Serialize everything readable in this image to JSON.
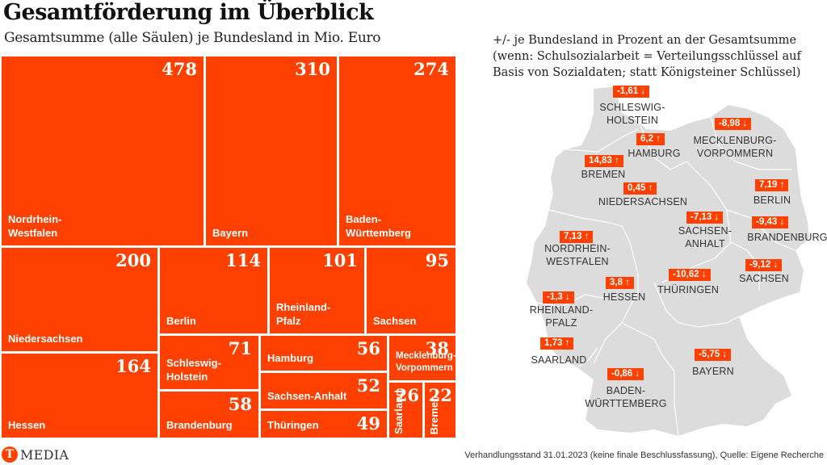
{
  "header": {
    "title": "Gesamtförderung im Überblick",
    "subtitle": "Gesamtsumme (alle Säulen) je Bundesland in Mio. Euro"
  },
  "colors": {
    "accent": "#ff4000",
    "map_fill": "#dcdcdc",
    "map_border": "#ffffff"
  },
  "chart_data": [
    {
      "type": "treemap",
      "title": "Gesamtsumme (alle Säulen) je Bundesland in Mio. Euro",
      "unit": "Mio. Euro",
      "items": [
        {
          "label": "Nordrhein-\nWestfalen",
          "name": "Nordrhein-Westfalen",
          "value": 478
        },
        {
          "label": "Bayern",
          "name": "Bayern",
          "value": 310
        },
        {
          "label": "Baden-\nWürttemberg",
          "name": "Baden-Württemberg",
          "value": 274
        },
        {
          "label": "Niedersachsen",
          "name": "Niedersachsen",
          "value": 200
        },
        {
          "label": "Hessen",
          "name": "Hessen",
          "value": 164
        },
        {
          "label": "Berlin",
          "name": "Berlin",
          "value": 114
        },
        {
          "label": "Rheinland-\nPfalz",
          "name": "Rheinland-Pfalz",
          "value": 101
        },
        {
          "label": "Sachsen",
          "name": "Sachsen",
          "value": 95
        },
        {
          "label": "Schleswig-\nHolstein",
          "name": "Schleswig-Holstein",
          "value": 71
        },
        {
          "label": "Brandenburg",
          "name": "Brandenburg",
          "value": 58
        },
        {
          "label": "Hamburg",
          "name": "Hamburg",
          "value": 56
        },
        {
          "label": "Sachsen-Anhalt",
          "name": "Sachsen-Anhalt",
          "value": 52
        },
        {
          "label": "Thüringen",
          "name": "Thüringen",
          "value": 49
        },
        {
          "label": "Mecklenburg-\nVorpommern",
          "name": "Mecklenburg-Vorpommern",
          "value": 38
        },
        {
          "label": "Saarland",
          "name": "Saarland",
          "value": 26
        },
        {
          "label": "Bremen",
          "name": "Bremen",
          "value": 22
        }
      ]
    },
    {
      "type": "map",
      "title": "+/- je Bundesland in Prozent an der Gesamtsumme\n(wenn: Schulsozialarbeit = Verteilungsschlüssel auf\nBasis von Sozialdaten; statt Königsteiner Schlüssel)",
      "unit": "%",
      "items": [
        {
          "name": "SCHLESWIG-\nHOLSTEIN",
          "value": "-1,61",
          "direction": "down"
        },
        {
          "name": "HAMBURG",
          "value": "6,2",
          "direction": "up"
        },
        {
          "name": "MECKLENBURG-\nVORPOMMERN",
          "value": "-8,98",
          "direction": "down"
        },
        {
          "name": "BREMEN",
          "value": "14,83",
          "direction": "up"
        },
        {
          "name": "NIEDERSACHSEN",
          "value": "0,45",
          "direction": "up"
        },
        {
          "name": "BERLIN",
          "value": "7,19",
          "direction": "up"
        },
        {
          "name": "SACHSEN-\nANHALT",
          "value": "-7,13",
          "direction": "down"
        },
        {
          "name": "BRANDENBURG",
          "value": "-9,43",
          "direction": "down"
        },
        {
          "name": "NORDRHEIN-\nWESTFALEN",
          "value": "7,13",
          "direction": "up"
        },
        {
          "name": "SACHSEN",
          "value": "-9,12",
          "direction": "down"
        },
        {
          "name": "HESSEN",
          "value": "3,8",
          "direction": "up"
        },
        {
          "name": "THÜRINGEN",
          "value": "-10,62",
          "direction": "down"
        },
        {
          "name": "RHEINLAND-\nPFALZ",
          "value": "-1,3",
          "direction": "down"
        },
        {
          "name": "SAARLAND",
          "value": "1,73",
          "direction": "up"
        },
        {
          "name": "BAYERN",
          "value": "-5,75",
          "direction": "down"
        },
        {
          "name": "BADEN-\nWÜRTTEMBERG",
          "value": "-0,86",
          "direction": "down"
        }
      ]
    }
  ],
  "icons": {
    "up": "arrow-up-icon",
    "down": "arrow-down-icon"
  },
  "footer": {
    "logo_letter": "T",
    "logo_text": "MEDIA",
    "source": "Verhandlungsstand 31.01.2023 (keine finale Beschlussfassung), Quelle: Eigene Recherche"
  }
}
